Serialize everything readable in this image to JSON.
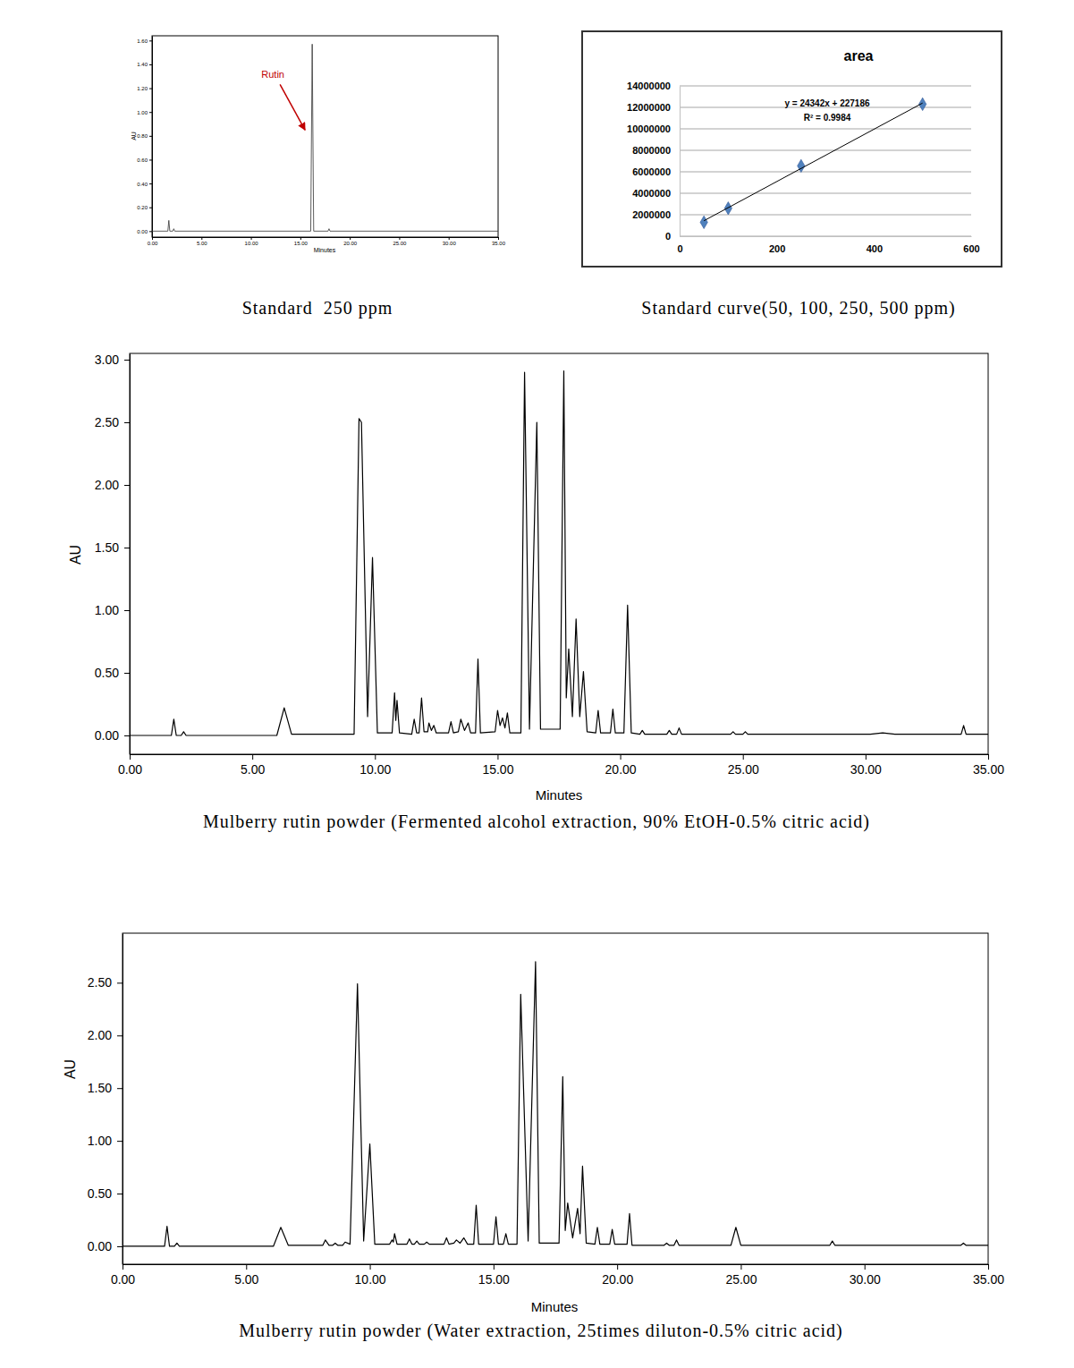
{
  "chart_data": [
    {
      "type": "line",
      "caption": "Standard  250 ppm",
      "x_label": "Minutes",
      "y_label": "AU",
      "annotations": [
        {
          "text": "Rutin",
          "color": "#c00000"
        }
      ],
      "xlim": [
        0,
        35
      ],
      "xticks": [
        {
          "value": 0,
          "label": "0.00"
        },
        {
          "value": 5,
          "label": "5.00"
        },
        {
          "value": 10,
          "label": "10.00"
        },
        {
          "value": 15,
          "label": "15.00"
        },
        {
          "value": 20,
          "label": "20.00"
        },
        {
          "value": 25,
          "label": "25.00"
        },
        {
          "value": 30,
          "label": "30.00"
        },
        {
          "value": 35,
          "label": "35.00"
        }
      ],
      "ylim": [
        -0.05,
        1.64
      ],
      "yticks": [
        {
          "value": 0,
          "label": "0.00"
        },
        {
          "value": 0.2,
          "label": "0.20"
        },
        {
          "value": 0.4,
          "label": "0.40"
        },
        {
          "value": 0.6,
          "label": "0.60"
        },
        {
          "value": 0.8,
          "label": "0.80"
        },
        {
          "value": 1,
          "label": "1.00"
        },
        {
          "value": 1.2,
          "label": "1.20"
        },
        {
          "value": 1.4,
          "label": "1.40"
        },
        {
          "value": 1.6,
          "label": "1.60"
        }
      ],
      "series": [
        {
          "color": "#333333",
          "x": [
            0,
            1.6,
            1.7,
            1.8,
            2.1,
            2.2,
            2.3,
            16.05,
            16.2,
            16.35,
            17.8,
            17.9,
            18.0,
            35
          ],
          "values": [
            0,
            0,
            0.09,
            0,
            0,
            0.02,
            0,
            0,
            1.57,
            0,
            0,
            0.02,
            0,
            0
          ]
        }
      ]
    },
    {
      "type": "scatter",
      "title": "area",
      "caption": "Standard curve(50, 100, 250, 500 ppm)",
      "annotations": [
        {
          "text": "y = 24342x + 227186"
        },
        {
          "text": "R² = 0.9984"
        }
      ],
      "xlim": [
        0,
        600
      ],
      "xticks": [
        0,
        200,
        400,
        600
      ],
      "ylim": [
        0,
        14000000
      ],
      "yticks": [
        0,
        2000000,
        4000000,
        6000000,
        8000000,
        10000000,
        12000000,
        14000000
      ],
      "grid": true,
      "series": [
        {
          "type": "scatter",
          "marker": "diamond",
          "color": "#4f81bd",
          "x": [
            50,
            100,
            250,
            500
          ],
          "values": [
            1300000,
            2600000,
            6550000,
            12300000
          ]
        },
        {
          "type": "line",
          "color": "#000000",
          "x": [
            50,
            500
          ],
          "values": [
            1440000,
            12400000
          ]
        }
      ]
    },
    {
      "type": "line",
      "caption": "Mulberry rutin powder (Fermented alcohol extraction, 90% EtOH-0.5% citric acid)",
      "x_label": "Minutes",
      "y_label": "AU",
      "xlim": [
        0,
        35
      ],
      "xticks": [
        {
          "value": 0,
          "label": "0.00"
        },
        {
          "value": 5,
          "label": "5.00"
        },
        {
          "value": 10,
          "label": "10.00"
        },
        {
          "value": 15,
          "label": "15.00"
        },
        {
          "value": 20,
          "label": "20.00"
        },
        {
          "value": 25,
          "label": "25.00"
        },
        {
          "value": 30,
          "label": "30.00"
        },
        {
          "value": 35,
          "label": "35.00"
        }
      ],
      "ylim": [
        -0.15,
        3.05
      ],
      "yticks": [
        {
          "value": 0,
          "label": "0.00"
        },
        {
          "value": 0.5,
          "label": "0.50"
        },
        {
          "value": 1,
          "label": "1.00"
        },
        {
          "value": 1.5,
          "label": "1.50"
        },
        {
          "value": 2,
          "label": "2.00"
        },
        {
          "value": 2.5,
          "label": "2.50"
        },
        {
          "value": 3,
          "label": "3.00"
        }
      ],
      "series": [
        {
          "color": "#000000",
          "x": [
            0,
            1.7,
            1.8,
            1.9,
            2.1,
            2.2,
            2.3,
            6.0,
            6.3,
            6.6,
            9.15,
            9.35,
            9.45,
            9.7,
            9.9,
            10.1,
            10.7,
            10.8,
            10.85,
            10.9,
            11.0,
            11.5,
            11.6,
            11.7,
            11.8,
            11.9,
            12.0,
            12.15,
            12.2,
            12.3,
            12.4,
            12.5,
            13.0,
            13.1,
            13.2,
            13.4,
            13.5,
            13.65,
            13.8,
            13.9,
            14.1,
            14.2,
            14.3,
            14.9,
            15.0,
            15.1,
            15.2,
            15.3,
            15.4,
            15.5,
            15.95,
            16.1,
            16.3,
            16.6,
            16.75,
            17.55,
            17.7,
            17.8,
            17.9,
            18.05,
            18.2,
            18.35,
            18.5,
            18.65,
            19.0,
            19.1,
            19.2,
            19.6,
            19.7,
            19.8,
            20.15,
            20.3,
            20.45,
            20.8,
            20.9,
            21.0,
            21.9,
            22.0,
            22.1,
            22.3,
            22.4,
            22.5,
            24.5,
            24.6,
            24.7,
            25.0,
            25.1,
            25.2,
            30.2,
            30.7,
            31.2,
            33.9,
            34.0,
            34.1,
            35
          ],
          "values": [
            0,
            0,
            0.13,
            0,
            0,
            0.03,
            0,
            0,
            0.22,
            0.01,
            0.01,
            2.53,
            2.5,
            0.15,
            1.42,
            0.02,
            0.02,
            0.34,
            0.12,
            0.28,
            0.02,
            0.01,
            0.13,
            0.02,
            0.02,
            0.3,
            0.03,
            0.03,
            0.1,
            0.04,
            0.08,
            0.02,
            0.02,
            0.11,
            0.02,
            0.03,
            0.13,
            0.04,
            0.1,
            0.02,
            0.02,
            0.61,
            0.02,
            0.03,
            0.2,
            0.08,
            0.14,
            0.06,
            0.18,
            0.02,
            0.02,
            2.9,
            0.05,
            2.5,
            0.05,
            0.05,
            2.91,
            0.3,
            0.69,
            0.15,
            0.93,
            0.15,
            0.51,
            0.03,
            0.02,
            0.2,
            0.02,
            0.02,
            0.21,
            0.02,
            0.02,
            1.04,
            0.02,
            0.01,
            0.04,
            0.01,
            0.01,
            0.04,
            0.01,
            0.01,
            0.06,
            0.01,
            0.01,
            0.03,
            0.01,
            0.01,
            0.03,
            0.01,
            0.01,
            0.02,
            0.01,
            0.01,
            0.08,
            0.01,
            0.01
          ]
        }
      ]
    },
    {
      "type": "line",
      "caption": "Mulberry rutin powder (Water extraction, 25times diluton-0.5% citric acid)",
      "x_label": "Minutes",
      "y_label": "AU",
      "xlim": [
        0,
        35
      ],
      "xticks": [
        {
          "value": 0,
          "label": "0.00"
        },
        {
          "value": 5,
          "label": "5.00"
        },
        {
          "value": 10,
          "label": "10.00"
        },
        {
          "value": 15,
          "label": "15.00"
        },
        {
          "value": 20,
          "label": "20.00"
        },
        {
          "value": 25,
          "label": "25.00"
        },
        {
          "value": 30,
          "label": "30.00"
        },
        {
          "value": 35,
          "label": "35.00"
        }
      ],
      "ylim": [
        -0.17,
        2.97
      ],
      "yticks": [
        {
          "value": 0,
          "label": "0.00"
        },
        {
          "value": 0.5,
          "label": "0.50"
        },
        {
          "value": 1,
          "label": "1.00"
        },
        {
          "value": 1.5,
          "label": "1.50"
        },
        {
          "value": 2,
          "label": "2.00"
        },
        {
          "value": 2.5,
          "label": "2.50"
        }
      ],
      "series": [
        {
          "color": "#000000",
          "x": [
            0,
            1.7,
            1.8,
            1.9,
            2.1,
            2.2,
            2.3,
            6.1,
            6.4,
            6.7,
            8.1,
            8.2,
            8.35,
            8.5,
            8.6,
            8.7,
            8.9,
            9.0,
            9.2,
            9.5,
            9.75,
            10.0,
            10.2,
            10.8,
            10.9,
            10.95,
            11.0,
            11.1,
            11.5,
            11.6,
            11.7,
            11.8,
            11.9,
            12.0,
            12.2,
            12.3,
            12.4,
            13.0,
            13.1,
            13.2,
            13.4,
            13.5,
            13.65,
            13.8,
            13.95,
            14.2,
            14.3,
            14.4,
            15.0,
            15.1,
            15.2,
            15.4,
            15.5,
            15.6,
            15.95,
            16.1,
            16.4,
            16.7,
            16.85,
            17.65,
            17.8,
            17.9,
            18.0,
            18.2,
            18.4,
            18.5,
            18.6,
            18.75,
            19.1,
            19.2,
            19.3,
            19.7,
            19.8,
            19.9,
            20.4,
            20.5,
            20.6,
            21.9,
            22.0,
            22.1,
            22.3,
            22.4,
            22.5,
            24.6,
            24.8,
            25.0,
            28.6,
            28.7,
            28.8,
            33.9,
            34.0,
            34.1,
            35
          ],
          "values": [
            0,
            0,
            0.19,
            0,
            0,
            0.03,
            0,
            0,
            0.18,
            0.01,
            0.01,
            0.06,
            0.01,
            0.01,
            0.03,
            0.01,
            0.01,
            0.04,
            0.02,
            2.49,
            0.05,
            0.97,
            0.02,
            0.02,
            0.06,
            0.04,
            0.12,
            0.02,
            0.02,
            0.07,
            0.02,
            0.02,
            0.05,
            0.02,
            0.02,
            0.04,
            0.02,
            0.02,
            0.08,
            0.02,
            0.03,
            0.06,
            0.03,
            0.08,
            0.02,
            0.02,
            0.39,
            0.02,
            0.02,
            0.28,
            0.02,
            0.02,
            0.12,
            0.02,
            0.02,
            2.39,
            0.05,
            2.7,
            0.03,
            0.03,
            1.61,
            0.15,
            0.41,
            0.08,
            0.36,
            0.12,
            0.76,
            0.03,
            0.02,
            0.18,
            0.02,
            0.02,
            0.16,
            0.02,
            0.02,
            0.31,
            0.01,
            0.01,
            0.03,
            0.01,
            0.01,
            0.06,
            0.01,
            0.01,
            0.18,
            0.01,
            0.01,
            0.05,
            0.01,
            0.01,
            0.03,
            0.01,
            0.01
          ]
        }
      ]
    }
  ]
}
